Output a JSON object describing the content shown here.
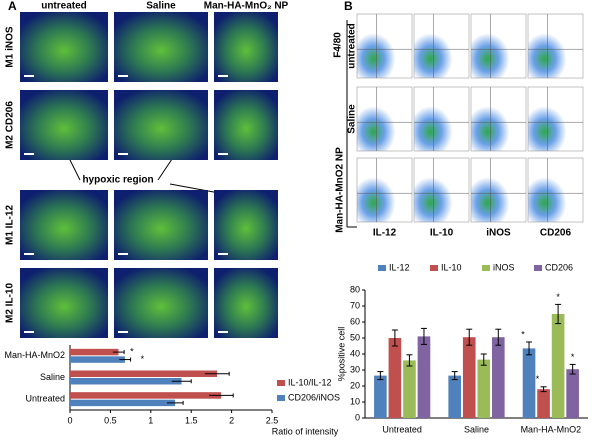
{
  "figure": {
    "panel_a": "A",
    "panel_b": "B",
    "a_columns": [
      "untreated",
      "Saline",
      "Man-HA-MnO₂ NP"
    ],
    "a_rows": [
      "M1 iNOS",
      "M2 CD206",
      "M1 IL-12",
      "M2 IL-10"
    ],
    "a_annotation": "hypoxic region",
    "b_rows": [
      "untreated",
      "Saline",
      "Man-HA-MnO2 NP"
    ],
    "b_columns": [
      "IL-12",
      "IL-10",
      "iNOS",
      "CD206"
    ],
    "b_axis": "F4/80"
  },
  "chart_data": [
    {
      "type": "bar",
      "orientation": "horizontal",
      "legend": "right",
      "categories": [
        "Man-HA-MnO2",
        "Saline",
        "Untreated"
      ],
      "series": [
        {
          "name": "IL-10/IL-12",
          "color": "#c0504d",
          "values": [
            0.6,
            1.82,
            1.87
          ],
          "errors": [
            0.07,
            0.15,
            0.15
          ],
          "significance": [
            "*",
            null,
            null
          ]
        },
        {
          "name": "CD206/iNOS",
          "color": "#4f81bd",
          "values": [
            0.68,
            1.38,
            1.3
          ],
          "errors": [
            0.07,
            0.12,
            0.1
          ],
          "significance": [
            "*",
            null,
            null
          ]
        }
      ],
      "xlim": [
        0,
        2.5
      ],
      "xticks": [
        0,
        0.5,
        1,
        1.5,
        2,
        2.5
      ],
      "xlabel": "Ratio of intensity"
    },
    {
      "type": "bar",
      "orientation": "vertical",
      "legend": "top",
      "categories": [
        "Untreated",
        "Saline",
        "Man-HA-MnO2"
      ],
      "series": [
        {
          "name": "IL-12",
          "color": "#4f81bd",
          "values": [
            26.5,
            26.5,
            43.5
          ],
          "errors": [
            2.5,
            2.5,
            4
          ],
          "significance": [
            null,
            null,
            "*"
          ]
        },
        {
          "name": "IL-10",
          "color": "#c0504d",
          "values": [
            50,
            50.5,
            18
          ],
          "errors": [
            5,
            5,
            1.5
          ],
          "significance": [
            null,
            null,
            "*"
          ]
        },
        {
          "name": "iNOS",
          "color": "#9bbb59",
          "values": [
            36,
            36.5,
            65
          ],
          "errors": [
            3.5,
            3.5,
            6
          ],
          "significance": [
            null,
            null,
            "*"
          ]
        },
        {
          "name": "CD206",
          "color": "#8064a2",
          "values": [
            51,
            50.5,
            30.5
          ],
          "errors": [
            5,
            5,
            3
          ],
          "significance": [
            null,
            null,
            "*"
          ]
        }
      ],
      "ylim": [
        0,
        80
      ],
      "yticks": [
        0,
        10,
        20,
        30,
        40,
        50,
        60,
        70,
        80
      ],
      "ylabel": "%positive cell"
    }
  ]
}
